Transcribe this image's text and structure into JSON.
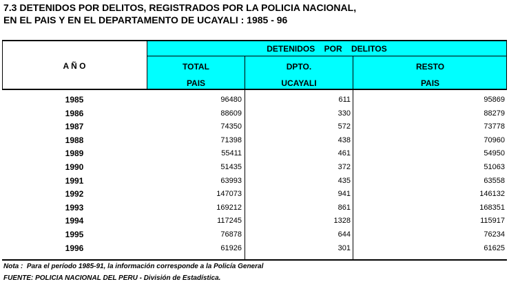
{
  "title": {
    "line1": "7.3  DETENIDOS POR DELITOS, REGISTRADOS POR LA POLICIA NACIONAL,",
    "line2": "EN EL PAIS Y EN EL DEPARTAMENTO DE UCAYALI : 1985 - 96"
  },
  "header": {
    "anio": "A Ñ O",
    "group": "DETENIDOS    POR    DELITOS",
    "col1_line1": "TOTAL",
    "col1_line2": "PAIS",
    "col2_line1": "DPTO.",
    "col2_line2": "UCAYALI",
    "col3_line1": "RESTO",
    "col3_line2": "PAIS"
  },
  "colors": {
    "header_bg": "#00ffff",
    "text": "#000000"
  },
  "rows": [
    {
      "year": "1985",
      "total": "96480",
      "ucayali": "611",
      "resto": "95869"
    },
    {
      "year": "1986",
      "total": "88609",
      "ucayali": "330",
      "resto": "88279"
    },
    {
      "year": "1987",
      "total": "74350",
      "ucayali": "572",
      "resto": "73778"
    },
    {
      "year": "1988",
      "total": "71398",
      "ucayali": "438",
      "resto": "70960"
    },
    {
      "year": "1989",
      "total": "55411",
      "ucayali": "461",
      "resto": "54950"
    },
    {
      "year": "1990",
      "total": "51435",
      "ucayali": "372",
      "resto": "51063"
    },
    {
      "year": "1991",
      "total": "63993",
      "ucayali": "435",
      "resto": "63558"
    },
    {
      "year": "1992",
      "total": "147073",
      "ucayali": "941",
      "resto": "146132"
    },
    {
      "year": "1993",
      "total": "169212",
      "ucayali": "861",
      "resto": "168351"
    },
    {
      "year": "1994",
      "total": "117245",
      "ucayali": "1328",
      "resto": "115917"
    },
    {
      "year": "1995",
      "total": "76878",
      "ucayali": "644",
      "resto": "76234"
    },
    {
      "year": "1996",
      "total": "61926",
      "ucayali": "301",
      "resto": "61625"
    }
  ],
  "notes": {
    "nota": "Nota :  Para el período 1985-91, la información corresponde a la Policía General",
    "fuente": "FUENTE: POLICIA NACIONAL DEL PERU - División de Estadística."
  }
}
